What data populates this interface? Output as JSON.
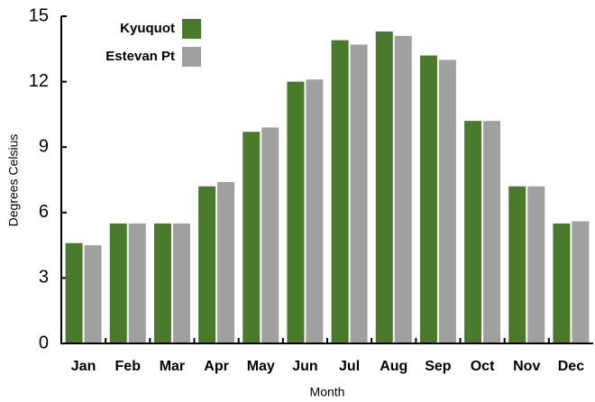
{
  "chart_data": {
    "type": "bar",
    "x_label": "Month",
    "y_label": "Degrees Celsius",
    "categories": [
      "Jan",
      "Feb",
      "Mar",
      "Apr",
      "May",
      "Jun",
      "Jul",
      "Aug",
      "Sep",
      "Oct",
      "Nov",
      "Dec"
    ],
    "series": [
      {
        "name": "Kyuquot",
        "color": "#4a7a2c",
        "values": [
          4.6,
          5.5,
          5.5,
          7.2,
          9.7,
          12.0,
          13.9,
          14.3,
          13.2,
          10.2,
          7.2,
          5.5
        ]
      },
      {
        "name": "Estevan Pt",
        "color": "#a0a0a0",
        "values": [
          4.5,
          5.5,
          5.5,
          7.4,
          9.9,
          12.1,
          13.7,
          14.1,
          13.0,
          10.2,
          7.2,
          5.6
        ]
      }
    ],
    "ylim": [
      0,
      15
    ],
    "yticks": [
      0,
      3,
      6,
      9,
      12,
      15
    ],
    "legend": "upper left"
  }
}
